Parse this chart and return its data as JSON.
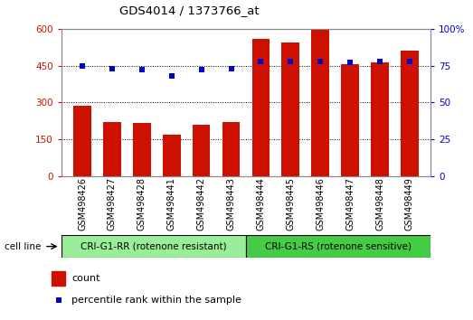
{
  "title": "GDS4014 / 1373766_at",
  "samples": [
    "GSM498426",
    "GSM498427",
    "GSM498428",
    "GSM498441",
    "GSM498442",
    "GSM498443",
    "GSM498444",
    "GSM498445",
    "GSM498446",
    "GSM498447",
    "GSM498448",
    "GSM498449"
  ],
  "counts": [
    285,
    220,
    215,
    168,
    210,
    220,
    560,
    545,
    600,
    455,
    462,
    510
  ],
  "percentile_ranks": [
    75,
    73,
    72,
    68,
    72,
    73,
    78,
    78,
    78,
    77,
    78,
    78
  ],
  "group1_label": "CRI-G1-RR (rotenone resistant)",
  "group2_label": "CRI-G1-RS (rotenone sensitive)",
  "group1_count": 6,
  "group2_count": 6,
  "bar_color": "#cc1100",
  "dot_color": "#0000cc",
  "group1_bg": "#99ee99",
  "group2_bg": "#44cc44",
  "ylim_left": [
    0,
    600
  ],
  "ylim_right": [
    0,
    100
  ],
  "yticks_left": [
    0,
    150,
    300,
    450,
    600
  ],
  "yticks_right": [
    0,
    25,
    50,
    75,
    100
  ],
  "legend_count_label": "count",
  "legend_pct_label": "percentile rank within the sample",
  "cell_line_label": "cell line",
  "background_color": "#ffffff",
  "plot_bg": "#ffffff",
  "bar_width": 0.6
}
